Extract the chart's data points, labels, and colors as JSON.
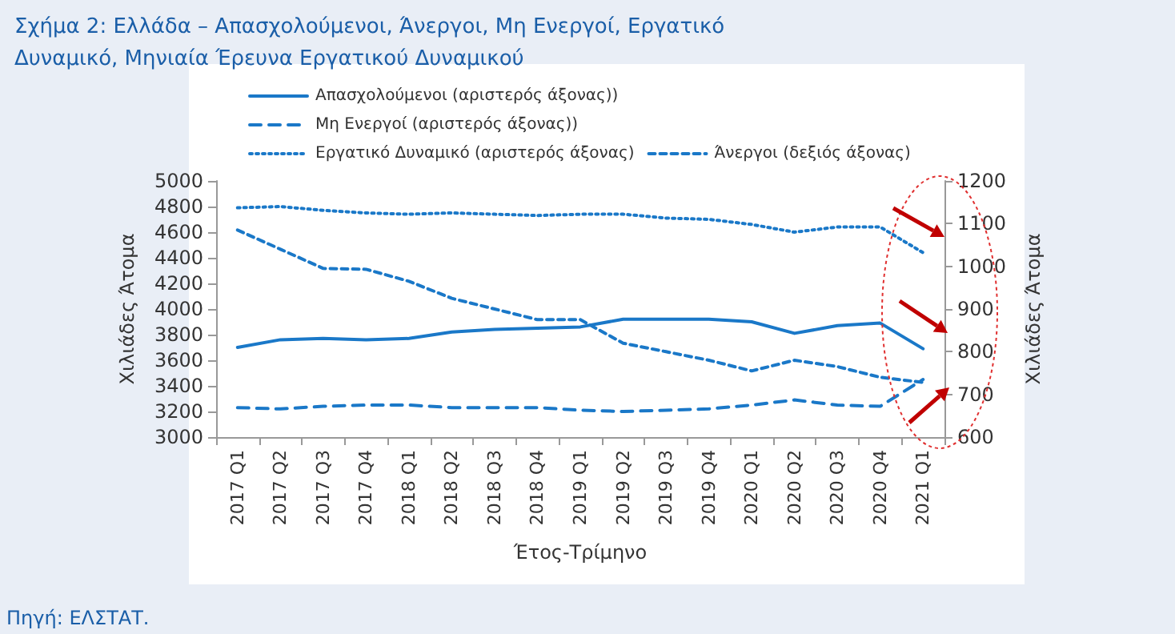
{
  "chart_data": {
    "type": "line",
    "title": "Σχήμα 2: Ελλάδα – Απασχολούμενοι, Άνεργοι, Μη Ενεργοί, Εργατικό Δυναμικό, Μηνιαία Έρευνα Εργατικού Δυναμικού",
    "xlabel": "Έτος-Τρίμηνο",
    "ylabel": "Χιλιάδες Άτομα",
    "y2label": "Χιλιάδες Άτομα",
    "categories": [
      "2017 Q1",
      "2017 Q2",
      "2017 Q3",
      "2017 Q4",
      "2018 Q1",
      "2018 Q2",
      "2018 Q3",
      "2018 Q4",
      "2019 Q1",
      "2019 Q2",
      "2019 Q3",
      "2019 Q4",
      "2020 Q1",
      "2020 Q2",
      "2020 Q3",
      "2020 Q4",
      "2021 Q1"
    ],
    "series": [
      {
        "name": "Απασχολούμενοι (αριστερός άξονας))",
        "color": "#1a78c8",
        "line_style": "solid",
        "values": [
          3700,
          3760,
          3770,
          3760,
          3770,
          3820,
          3840,
          3850,
          3860,
          3920,
          3920,
          3920,
          3900,
          3810,
          3870,
          3890,
          3690
        ]
      },
      {
        "name": "Μη Ενεργοί (αριστερός άξονας))",
        "color": "#1a78c8",
        "line_style": "dashed",
        "values": [
          3230,
          3220,
          3240,
          3250,
          3250,
          3230,
          3230,
          3230,
          3210,
          3200,
          3210,
          3220,
          3250,
          3290,
          3250,
          3240,
          3450
        ]
      },
      {
        "name": "Εργατικό Δυναμικό (αριστερός άξονας)",
        "color": "#1a78c8",
        "line_style": "dotted",
        "values": [
          4790,
          4800,
          4770,
          4750,
          4740,
          4750,
          4740,
          4730,
          4740,
          4740,
          4710,
          4700,
          4660,
          4600,
          4640,
          4640,
          4440
        ]
      },
      {
        "name": "Άνεργοι (δεξιός άξονας)",
        "color": "#1a78c8",
        "line_style": "dashed",
        "axis": "y2",
        "values": [
          1085,
          1040,
          995,
          993,
          965,
          925,
          900,
          875,
          875,
          820,
          800,
          780,
          755,
          780,
          765,
          740,
          728
        ]
      }
    ],
    "ylim": [
      3000,
      5000
    ],
    "yticks": [
      3000,
      3200,
      3400,
      3600,
      3800,
      4000,
      4200,
      4400,
      4600,
      4800,
      5000
    ],
    "y2lim": [
      600,
      1200
    ],
    "y2ticks": [
      600,
      700,
      800,
      900,
      1000,
      1100,
      1200
    ],
    "grid": false,
    "legend": "top",
    "marker": "none",
    "annotations": [
      "Πηγή: ΕΛΣΤΑΤ."
    ]
  }
}
